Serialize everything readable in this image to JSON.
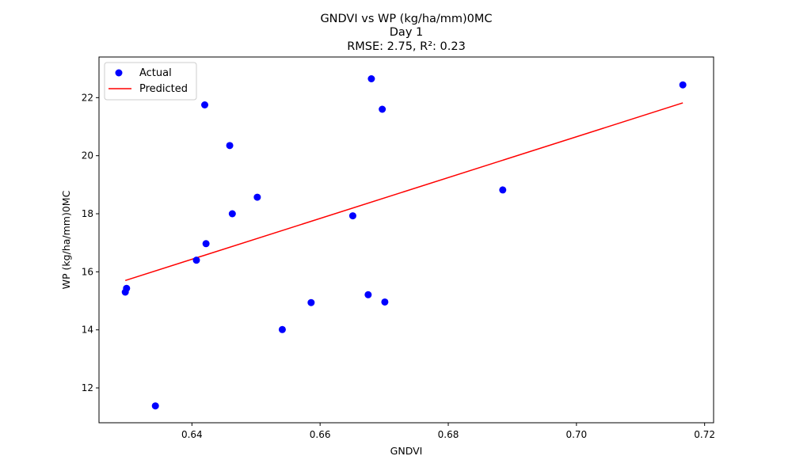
{
  "chart_data": {
    "type": "scatter",
    "title_lines": [
      "GNDVI vs WP (kg/ha/mm)0MC",
      "Day 1",
      "RMSE: 2.75, R²: 0.23"
    ],
    "xlabel": "GNDVI",
    "ylabel": "WP (kg/ha/mm)0MC",
    "xlim": [
      0.6255,
      0.7214
    ],
    "ylim": [
      10.8,
      23.4
    ],
    "xticks": [
      0.64,
      0.66,
      0.68,
      0.7,
      0.72
    ],
    "xtick_labels": [
      "0.64",
      "0.66",
      "0.68",
      "0.70",
      "0.72"
    ],
    "yticks": [
      12,
      14,
      16,
      18,
      20,
      22
    ],
    "ytick_labels": [
      "12",
      "14",
      "16",
      "18",
      "20",
      "22"
    ],
    "grid": false,
    "legend_position": "top-left",
    "series": [
      {
        "name": "Actual",
        "kind": "scatter",
        "color": "#0000ff",
        "points": [
          [
            0.6296,
            15.3
          ],
          [
            0.6298,
            15.43
          ],
          [
            0.6343,
            11.38
          ],
          [
            0.6407,
            16.4
          ],
          [
            0.642,
            21.75
          ],
          [
            0.6422,
            16.97
          ],
          [
            0.6459,
            20.35
          ],
          [
            0.6463,
            18.0
          ],
          [
            0.6502,
            18.57
          ],
          [
            0.6541,
            14.01
          ],
          [
            0.6586,
            14.94
          ],
          [
            0.6651,
            17.93
          ],
          [
            0.6675,
            15.21
          ],
          [
            0.668,
            22.65
          ],
          [
            0.6697,
            21.6
          ],
          [
            0.6701,
            14.96
          ],
          [
            0.6885,
            18.82
          ],
          [
            0.7166,
            22.44
          ]
        ]
      },
      {
        "name": "Predicted",
        "kind": "line",
        "color": "#ff0000",
        "points": [
          [
            0.6296,
            15.7
          ],
          [
            0.7166,
            21.82
          ]
        ]
      }
    ]
  }
}
